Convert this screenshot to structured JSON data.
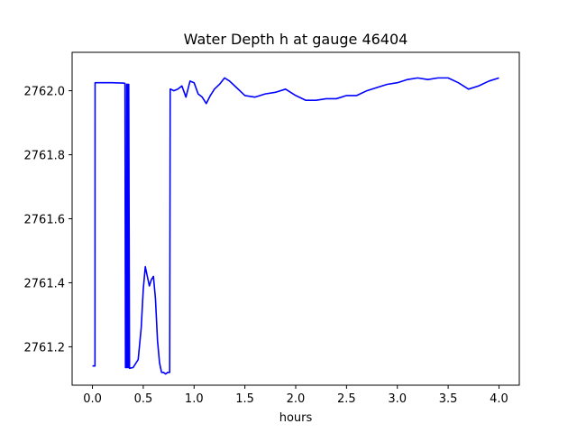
{
  "chart_data": {
    "type": "line",
    "title": "Water Depth h at gauge 46404",
    "xlabel": "hours",
    "ylabel": "",
    "xlim": [
      -0.2,
      4.2
    ],
    "ylim": [
      2761.08,
      2762.12
    ],
    "xticks": [
      0.0,
      0.5,
      1.0,
      1.5,
      2.0,
      2.5,
      3.0,
      3.5,
      4.0
    ],
    "xtick_labels": [
      "0.0",
      "0.5",
      "1.0",
      "1.5",
      "2.0",
      "2.5",
      "3.0",
      "3.5",
      "4.0"
    ],
    "yticks": [
      2761.2,
      2761.4,
      2761.6,
      2761.8,
      2762.0
    ],
    "ytick_labels": [
      "2761.2",
      "2761.4",
      "2761.6",
      "2761.8",
      "2762.0"
    ],
    "grid": false,
    "series": [
      {
        "name": "",
        "color": "#0000ff",
        "x": [
          0.0,
          0.025,
          0.026,
          0.1,
          0.2,
          0.3,
          0.32,
          0.325,
          0.335,
          0.337,
          0.345,
          0.347,
          0.355,
          0.357,
          0.365,
          0.4,
          0.45,
          0.48,
          0.5,
          0.52,
          0.54,
          0.56,
          0.58,
          0.6,
          0.62,
          0.64,
          0.66,
          0.68,
          0.7,
          0.72,
          0.74,
          0.76,
          0.765,
          0.77,
          0.8,
          0.84,
          0.88,
          0.92,
          0.96,
          1.0,
          1.04,
          1.08,
          1.12,
          1.16,
          1.2,
          1.25,
          1.3,
          1.35,
          1.4,
          1.45,
          1.5,
          1.6,
          1.7,
          1.8,
          1.9,
          2.0,
          2.1,
          2.2,
          2.3,
          2.4,
          2.5,
          2.6,
          2.7,
          2.8,
          2.9,
          3.0,
          3.1,
          3.2,
          3.3,
          3.4,
          3.5,
          3.6,
          3.7,
          3.8,
          3.9,
          4.0
        ],
        "y": [
          2761.14,
          2761.14,
          2762.025,
          2762.025,
          2762.025,
          2762.024,
          2762.023,
          2761.135,
          2761.135,
          2762.02,
          2762.02,
          2761.135,
          2761.135,
          2762.02,
          2761.133,
          2761.135,
          2761.16,
          2761.26,
          2761.38,
          2761.45,
          2761.42,
          2761.39,
          2761.41,
          2761.42,
          2761.35,
          2761.22,
          2761.15,
          2761.12,
          2761.12,
          2761.115,
          2761.12,
          2761.12,
          2762.005,
          2762.005,
          2762.0,
          2762.005,
          2762.015,
          2761.98,
          2762.03,
          2762.025,
          2761.99,
          2761.98,
          2761.96,
          2761.985,
          2762.005,
          2762.02,
          2762.04,
          2762.03,
          2762.015,
          2762.0,
          2761.985,
          2761.98,
          2761.99,
          2761.995,
          2762.005,
          2761.985,
          2761.97,
          2761.97,
          2761.975,
          2761.975,
          2761.985,
          2761.985,
          2762.0,
          2762.01,
          2762.02,
          2762.025,
          2762.035,
          2762.04,
          2762.035,
          2762.04,
          2762.04,
          2762.025,
          2762.005,
          2762.015,
          2762.03,
          2762.04
        ]
      }
    ]
  }
}
